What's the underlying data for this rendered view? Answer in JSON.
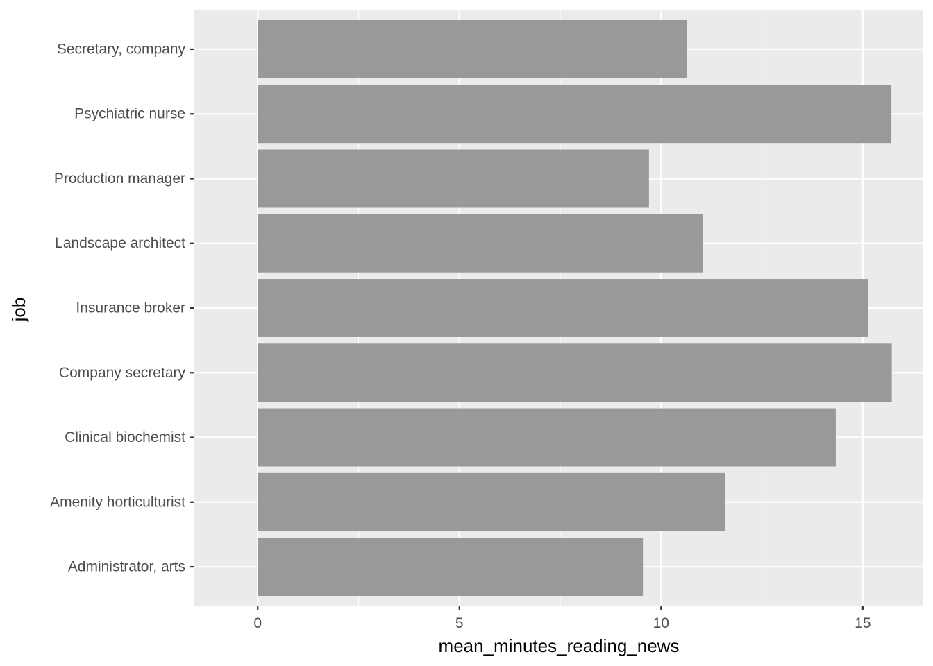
{
  "chart_data": {
    "type": "bar",
    "orientation": "horizontal",
    "categories": [
      "Administrator, arts",
      "Amenity horticulturist",
      "Clinical biochemist",
      "Company secretary",
      "Insurance broker",
      "Landscape architect",
      "Production manager",
      "Psychiatric nurse",
      "Secretary, company"
    ],
    "values": [
      9.55,
      11.58,
      14.33,
      15.72,
      15.14,
      11.04,
      9.7,
      15.71,
      10.64
    ],
    "xlabel": "mean_minutes_reading_news",
    "ylabel": "job",
    "xlim": [
      -1.57,
      16.5
    ],
    "x_ticks": [
      0,
      5,
      10,
      15
    ],
    "x_tick_labels": [
      "0",
      "5",
      "10",
      "15"
    ],
    "grid": true,
    "legend": "none",
    "colors": {
      "panel": "#ebebeb",
      "grid_major": "#ffffff",
      "bar": "#999999",
      "tick_text": "#4d4d4d",
      "tick_mark": "#333333",
      "title_text": "#000000"
    }
  }
}
